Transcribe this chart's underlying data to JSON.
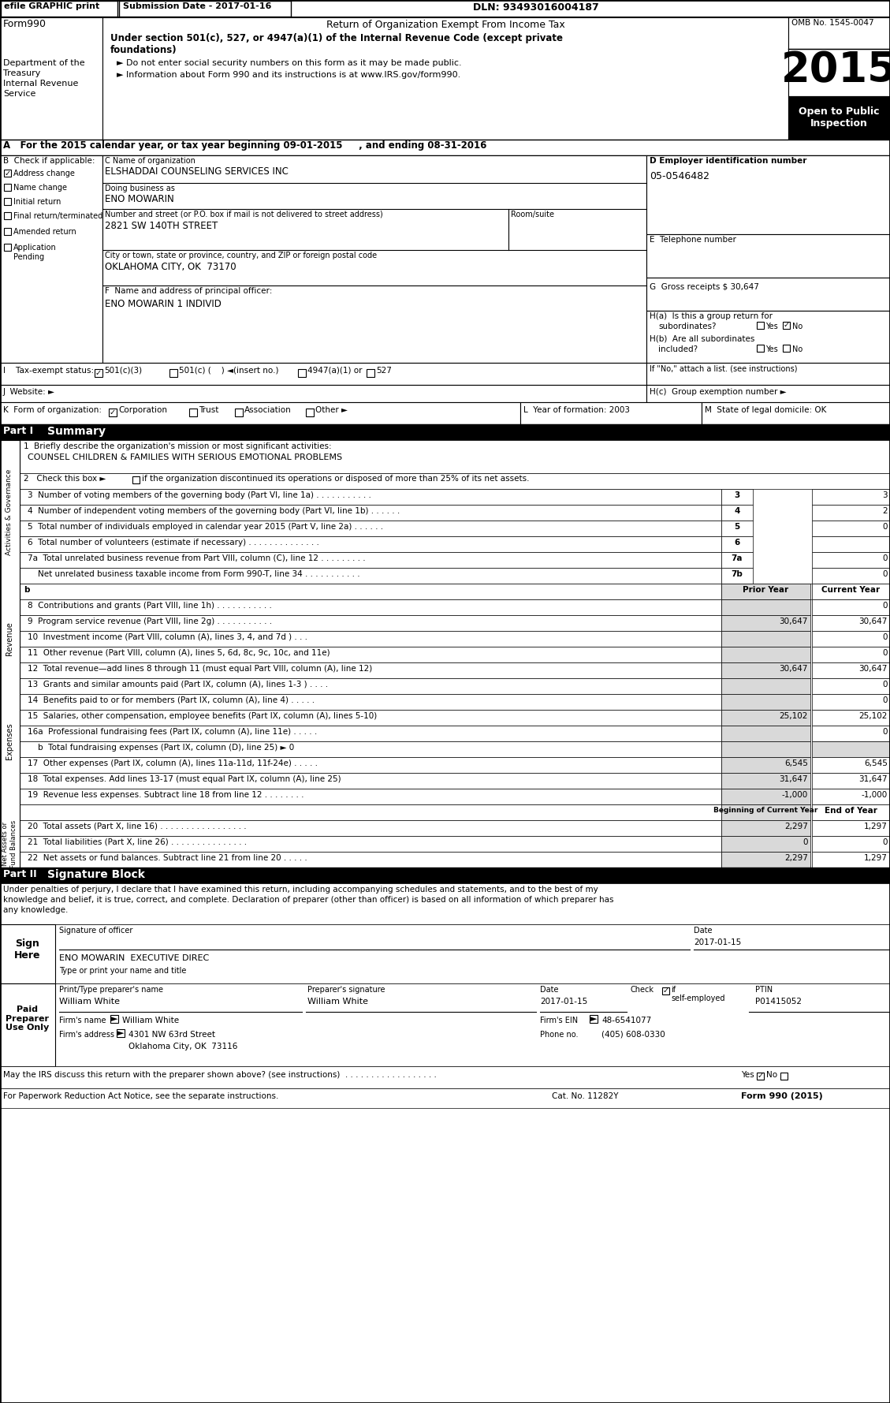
{
  "title_bar": {
    "efile": "efile GRAPHIC print",
    "submission": "Submission Date - 2017-01-16",
    "dln": "DLN: 93493016004187"
  },
  "form_header": {
    "form_number": "Form990",
    "title": "Return of Organization Exempt From Income Tax",
    "omb": "OMB No. 1545-0047",
    "year": "2015",
    "dept1": "Department of the",
    "dept2": "Treasury",
    "dept3": "Internal Revenue",
    "dept4": "Service",
    "bold_text1": "Under section 501(c), 527, or 4947(a)(1) of the Internal Revenue Code (except private",
    "bold_text2": "foundations)",
    "bullet1": "► Do not enter social security numbers on this form as it may be made public.",
    "bullet2": "► Information about Form 990 and its instructions is at www.IRS.gov/form990."
  },
  "colors": {
    "black": "#000000",
    "white": "#ffffff",
    "light_gray": "#d9d9d9",
    "mid_gray": "#808080"
  }
}
